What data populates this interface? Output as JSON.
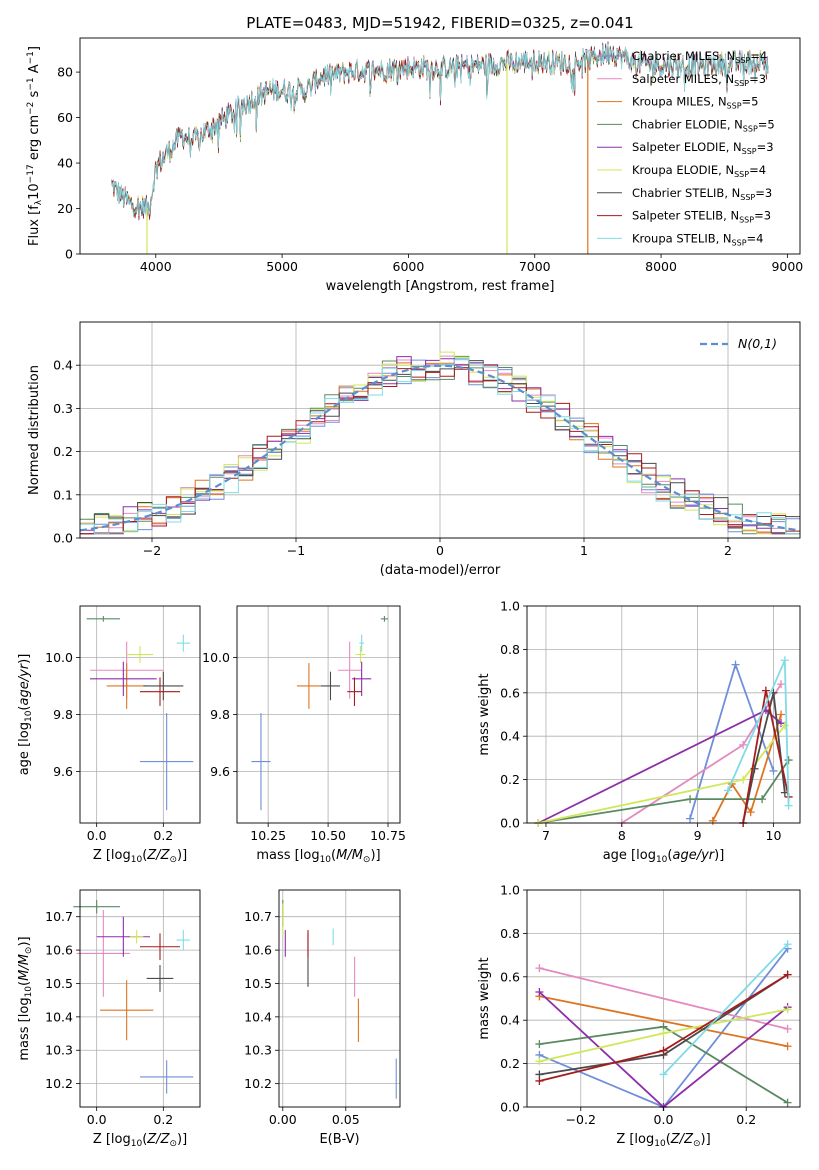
{
  "figure_title": "PLATE=0483, MJD=51942, FIBERID=0325, z=0.041",
  "colors": {
    "Chabrier MILES": "#6f8fd8",
    "Salpeter MILES": "#e58abf",
    "Kroupa MILES": "#de7420",
    "Chabrier ELODIE": "#5a8a62",
    "Salpeter ELODIE": "#8e2fa8",
    "Kroupa ELODIE": "#cfe85a",
    "Chabrier STELIB": "#4a4a4a",
    "Salpeter STELIB": "#a61c1c",
    "Kroupa STELIB": "#7fdce6",
    "gauss": "#5b8fd0"
  },
  "chart_data": [
    {
      "id": "spectrum",
      "type": "line",
      "xlabel": "wavelength [Angstrom, rest frame]",
      "ylabel": "Flux [f_λ 10^-17 erg cm^-2 s^-1 A^-1]",
      "xlim": [
        3400,
        9100
      ],
      "ylim": [
        0,
        95
      ],
      "xticks": [
        4000,
        5000,
        6000,
        7000,
        8000,
        9000
      ],
      "yticks": [
        0,
        20,
        40,
        60,
        80
      ],
      "legend": "right",
      "series": [
        {
          "name": "Chabrier MILES",
          "nssp": "4"
        },
        {
          "name": "Salpeter MILES",
          "nssp": "3"
        },
        {
          "name": "Kroupa MILES",
          "nssp": "5"
        },
        {
          "name": "Chabrier ELODIE",
          "nssp": "5"
        },
        {
          "name": "Salpeter ELODIE",
          "nssp": "3"
        },
        {
          "name": "Kroupa ELODIE",
          "nssp": "4"
        },
        {
          "name": "Chabrier STELIB",
          "nssp": "3"
        },
        {
          "name": "Salpeter STELIB",
          "nssp": "3"
        },
        {
          "name": "Kroupa STELIB",
          "nssp": "4"
        }
      ],
      "continuum": [
        [
          3650,
          30
        ],
        [
          3800,
          22
        ],
        [
          3950,
          20
        ],
        [
          4000,
          38
        ],
        [
          4100,
          45
        ],
        [
          4200,
          52
        ],
        [
          4300,
          50
        ],
        [
          4500,
          58
        ],
        [
          4700,
          66
        ],
        [
          4900,
          72
        ],
        [
          5100,
          72
        ],
        [
          5200,
          72
        ],
        [
          5300,
          78
        ],
        [
          5500,
          80
        ],
        [
          5800,
          81
        ],
        [
          6000,
          82
        ],
        [
          6300,
          82
        ],
        [
          6600,
          83
        ],
        [
          6800,
          84
        ],
        [
          7000,
          85
        ],
        [
          7200,
          84
        ],
        [
          7400,
          85
        ],
        [
          7600,
          89
        ],
        [
          7800,
          84
        ],
        [
          8000,
          83
        ],
        [
          8300,
          83
        ],
        [
          8600,
          84
        ],
        [
          8800,
          85
        ]
      ],
      "drops": [
        {
          "series": "Kroupa ELODIE",
          "x": 3930
        },
        {
          "series": "Kroupa ELODIE",
          "x": 6780
        },
        {
          "series": "Kroupa MILES",
          "x": 7420
        }
      ]
    },
    {
      "id": "residuals",
      "type": "histogram",
      "xlabel": "(data-model)/error",
      "ylabel": "Normed distribution",
      "xlim": [
        -2.5,
        2.5
      ],
      "ylim": [
        0,
        0.5
      ],
      "xticks": [
        -2,
        -1,
        0,
        1,
        2
      ],
      "yticks": [
        0.0,
        0.1,
        0.2,
        0.3,
        0.4
      ],
      "grid": true,
      "legend": "top-right",
      "gauss_label": "N(0,1)",
      "bin_width": 0.1,
      "x_start": -2.5
    },
    {
      "id": "age_vs_Z",
      "type": "scatter",
      "xlabel": "Z [log10(Z/Z⊙)]",
      "ylabel": "age [log10(age/yr)]",
      "xlim": [
        -0.05,
        0.31
      ],
      "ylim": [
        9.42,
        10.18
      ],
      "xticks": [
        0.0,
        0.2
      ],
      "yticks": [
        9.6,
        9.8,
        10.0
      ],
      "grid": true,
      "points": [
        {
          "series": "Chabrier MILES",
          "x": 0.21,
          "y": 9.635,
          "xerr": 0.08,
          "yerr": 0.17
        },
        {
          "series": "Salpeter MILES",
          "x": 0.09,
          "y": 9.955,
          "xerr": 0.11,
          "yerr": 0.1
        },
        {
          "series": "Kroupa MILES",
          "x": 0.09,
          "y": 9.9,
          "xerr": 0.06,
          "yerr": 0.08
        },
        {
          "series": "Chabrier ELODIE",
          "x": 0.02,
          "y": 10.135,
          "xerr": 0.05,
          "yerr": 0.01
        },
        {
          "series": "Salpeter ELODIE",
          "x": 0.08,
          "y": 9.925,
          "xerr": 0.1,
          "yerr": 0.06
        },
        {
          "series": "Kroupa ELODIE",
          "x": 0.13,
          "y": 10.01,
          "xerr": 0.04,
          "yerr": 0.03
        },
        {
          "series": "Chabrier STELIB",
          "x": 0.2,
          "y": 9.9,
          "xerr": 0.06,
          "yerr": 0.05
        },
        {
          "series": "Salpeter STELIB",
          "x": 0.19,
          "y": 9.88,
          "xerr": 0.06,
          "yerr": 0.05
        },
        {
          "series": "Kroupa STELIB",
          "x": 0.26,
          "y": 10.05,
          "xerr": 0.02,
          "yerr": 0.03
        }
      ]
    },
    {
      "id": "age_vs_mass",
      "type": "scatter",
      "xlabel": "mass [log10(M/M⊙)]",
      "ylabel": "",
      "xlim": [
        10.12,
        10.8
      ],
      "ylim": [
        9.42,
        10.18
      ],
      "xticks": [
        10.25,
        10.5,
        10.75
      ],
      "yticks": [
        9.6,
        9.8,
        10.0
      ],
      "grid": true,
      "points": [
        {
          "series": "Chabrier MILES",
          "x": 10.22,
          "y": 9.635,
          "xerr": 0.04,
          "yerr": 0.17
        },
        {
          "series": "Salpeter MILES",
          "x": 10.59,
          "y": 9.955,
          "xerr": 0.05,
          "yerr": 0.1
        },
        {
          "series": "Kroupa MILES",
          "x": 10.42,
          "y": 9.9,
          "xerr": 0.05,
          "yerr": 0.08
        },
        {
          "series": "Chabrier ELODIE",
          "x": 10.735,
          "y": 10.135,
          "xerr": 0.015,
          "yerr": 0.01
        },
        {
          "series": "Salpeter ELODIE",
          "x": 10.64,
          "y": 9.925,
          "xerr": 0.04,
          "yerr": 0.06
        },
        {
          "series": "Kroupa ELODIE",
          "x": 10.635,
          "y": 10.01,
          "xerr": 0.02,
          "yerr": 0.03
        },
        {
          "series": "Chabrier STELIB",
          "x": 10.51,
          "y": 9.9,
          "xerr": 0.04,
          "yerr": 0.05
        },
        {
          "series": "Salpeter STELIB",
          "x": 10.61,
          "y": 9.88,
          "xerr": 0.03,
          "yerr": 0.05
        },
        {
          "series": "Kroupa STELIB",
          "x": 10.64,
          "y": 10.05,
          "xerr": 0.01,
          "yerr": 0.03
        }
      ]
    },
    {
      "id": "weights_vs_age",
      "type": "line",
      "xlabel": "age [log10(age/yr)]",
      "ylabel": "mass weight",
      "xlim": [
        6.75,
        10.35
      ],
      "ylim": [
        0,
        1
      ],
      "xticks": [
        7,
        8,
        9,
        10
      ],
      "yticks": [
        0.0,
        0.2,
        0.4,
        0.6,
        0.8,
        1.0
      ],
      "grid": true,
      "series": [
        {
          "name": "Chabrier MILES",
          "x": [
            8.9,
            9.5,
            10.0
          ],
          "y": [
            0.02,
            0.73,
            0.24
          ]
        },
        {
          "name": "Salpeter MILES",
          "x": [
            8.0,
            9.6,
            10.1
          ],
          "y": [
            0.0,
            0.36,
            0.64
          ]
        },
        {
          "name": "Kroupa MILES",
          "x": [
            9.2,
            9.45,
            9.7,
            10.1
          ],
          "y": [
            0.01,
            0.18,
            0.05,
            0.5
          ]
        },
        {
          "name": "Chabrier ELODIE",
          "x": [
            6.9,
            8.9,
            9.85,
            10.2
          ],
          "y": [
            0.0,
            0.11,
            0.11,
            0.29
          ]
        },
        {
          "name": "Salpeter ELODIE",
          "x": [
            6.9,
            9.9,
            10.1
          ],
          "y": [
            0.0,
            0.52,
            0.46
          ]
        },
        {
          "name": "Kroupa ELODIE",
          "x": [
            6.9,
            9.6,
            10.15
          ],
          "y": [
            0.0,
            0.2,
            0.45
          ]
        },
        {
          "name": "Chabrier STELIB",
          "x": [
            9.6,
            9.75,
            10.0,
            10.15
          ],
          "y": [
            0.0,
            0.25,
            0.6,
            0.14
          ]
        },
        {
          "name": "Salpeter STELIB",
          "x": [
            9.6,
            9.9,
            10.2
          ],
          "y": [
            0.0,
            0.61,
            0.12
          ]
        },
        {
          "name": "Kroupa STELIB",
          "x": [
            9.4,
            10.15,
            10.2
          ],
          "y": [
            0.15,
            0.75,
            0.08
          ]
        }
      ]
    },
    {
      "id": "mass_vs_Z",
      "type": "scatter",
      "xlabel": "Z [log10(Z/Z⊙)]",
      "ylabel": "mass [log10(M/M⊙)]",
      "xlim": [
        -0.05,
        0.31
      ],
      "ylim": [
        10.13,
        10.78
      ],
      "xticks": [
        0.0,
        0.2
      ],
      "yticks": [
        10.2,
        10.3,
        10.4,
        10.5,
        10.6,
        10.7
      ],
      "grid": true,
      "points": [
        {
          "series": "Chabrier MILES",
          "x": 0.21,
          "y": 10.22,
          "xerr": 0.08,
          "yerr": 0.05
        },
        {
          "series": "Salpeter MILES",
          "x": 0.02,
          "y": 10.59,
          "xerr": 0.08,
          "yerr": 0.13
        },
        {
          "series": "Kroupa MILES",
          "x": 0.09,
          "y": 10.42,
          "xerr": 0.08,
          "yerr": 0.09
        },
        {
          "series": "Chabrier ELODIE",
          "x": 0.0,
          "y": 10.73,
          "xerr": 0.07,
          "yerr": 0.02
        },
        {
          "series": "Salpeter ELODIE",
          "x": 0.08,
          "y": 10.64,
          "xerr": 0.08,
          "yerr": 0.06
        },
        {
          "series": "Kroupa ELODIE",
          "x": 0.12,
          "y": 10.64,
          "xerr": 0.02,
          "yerr": 0.02
        },
        {
          "series": "Chabrier STELIB",
          "x": 0.19,
          "y": 10.515,
          "xerr": 0.04,
          "yerr": 0.04
        },
        {
          "series": "Salpeter STELIB",
          "x": 0.19,
          "y": 10.61,
          "xerr": 0.06,
          "yerr": 0.04
        },
        {
          "series": "Kroupa STELIB",
          "x": 0.26,
          "y": 10.63,
          "xerr": 0.02,
          "yerr": 0.03
        }
      ]
    },
    {
      "id": "mass_vs_ebv",
      "type": "scatter",
      "xlabel": "E(B-V)",
      "ylabel": "",
      "xlim": [
        -0.003,
        0.093
      ],
      "ylim": [
        10.13,
        10.78
      ],
      "xticks": [
        0.0,
        0.05
      ],
      "yticks": [
        10.2,
        10.3,
        10.4,
        10.5,
        10.6,
        10.7
      ],
      "grid": true,
      "points": [
        {
          "series": "Chabrier MILES",
          "x": 0.09,
          "y": 10.215,
          "xerr": 0.0,
          "yerr": 0.06
        },
        {
          "series": "Salpeter MILES",
          "x": 0.057,
          "y": 10.52,
          "xerr": 0.0,
          "yerr": 0.06
        },
        {
          "series": "Kroupa MILES",
          "x": 0.06,
          "y": 10.39,
          "xerr": 0.0,
          "yerr": 0.065
        },
        {
          "series": "Chabrier ELODIE",
          "x": 0.0,
          "y": 10.71,
          "xerr": 0.0,
          "yerr": 0.04
        },
        {
          "series": "Salpeter ELODIE",
          "x": 0.002,
          "y": 10.62,
          "xerr": 0.0,
          "yerr": 0.04
        },
        {
          "series": "Kroupa ELODIE",
          "x": 0.0,
          "y": 10.69,
          "xerr": 0.0,
          "yerr": 0.05
        },
        {
          "series": "Chabrier STELIB",
          "x": 0.02,
          "y": 10.57,
          "xerr": 0.0,
          "yerr": 0.08
        },
        {
          "series": "Salpeter STELIB",
          "x": 0.02,
          "y": 10.62,
          "xerr": 0.0,
          "yerr": 0.04
        },
        {
          "series": "Kroupa STELIB",
          "x": 0.04,
          "y": 10.64,
          "xerr": 0.0,
          "yerr": 0.025
        }
      ]
    },
    {
      "id": "weights_vs_Z",
      "type": "line",
      "xlabel": "Z [log10(Z/Z⊙)]",
      "ylabel": "mass weight",
      "xlim": [
        -0.33,
        0.33
      ],
      "ylim": [
        0,
        1
      ],
      "xticks": [
        -0.2,
        0.0,
        0.2
      ],
      "yticks": [
        0.0,
        0.2,
        0.4,
        0.6,
        0.8,
        1.0
      ],
      "grid": true,
      "series": [
        {
          "name": "Chabrier MILES",
          "x": [
            -0.3,
            0.0,
            0.3
          ],
          "y": [
            0.24,
            0.0,
            0.73
          ]
        },
        {
          "name": "Salpeter MILES",
          "x": [
            -0.3,
            0.3
          ],
          "y": [
            0.64,
            0.36
          ]
        },
        {
          "name": "Kroupa MILES",
          "x": [
            -0.3,
            0.3
          ],
          "y": [
            0.51,
            0.28
          ]
        },
        {
          "name": "Chabrier ELODIE",
          "x": [
            -0.3,
            0.0,
            0.3
          ],
          "y": [
            0.29,
            0.37,
            0.02
          ]
        },
        {
          "name": "Salpeter ELODIE",
          "x": [
            -0.3,
            0.0,
            0.3
          ],
          "y": [
            0.53,
            0.0,
            0.46
          ]
        },
        {
          "name": "Kroupa ELODIE",
          "x": [
            -0.3,
            0.0,
            0.3
          ],
          "y": [
            0.21,
            0.34,
            0.45
          ]
        },
        {
          "name": "Chabrier STELIB",
          "x": [
            -0.3,
            0.0,
            0.3
          ],
          "y": [
            0.15,
            0.24,
            0.61
          ]
        },
        {
          "name": "Salpeter STELIB",
          "x": [
            -0.3,
            0.0,
            0.3
          ],
          "y": [
            0.12,
            0.26,
            0.61
          ]
        },
        {
          "name": "Kroupa STELIB",
          "x": [
            0.0,
            0.3
          ],
          "y": [
            0.15,
            0.75
          ]
        }
      ]
    }
  ]
}
